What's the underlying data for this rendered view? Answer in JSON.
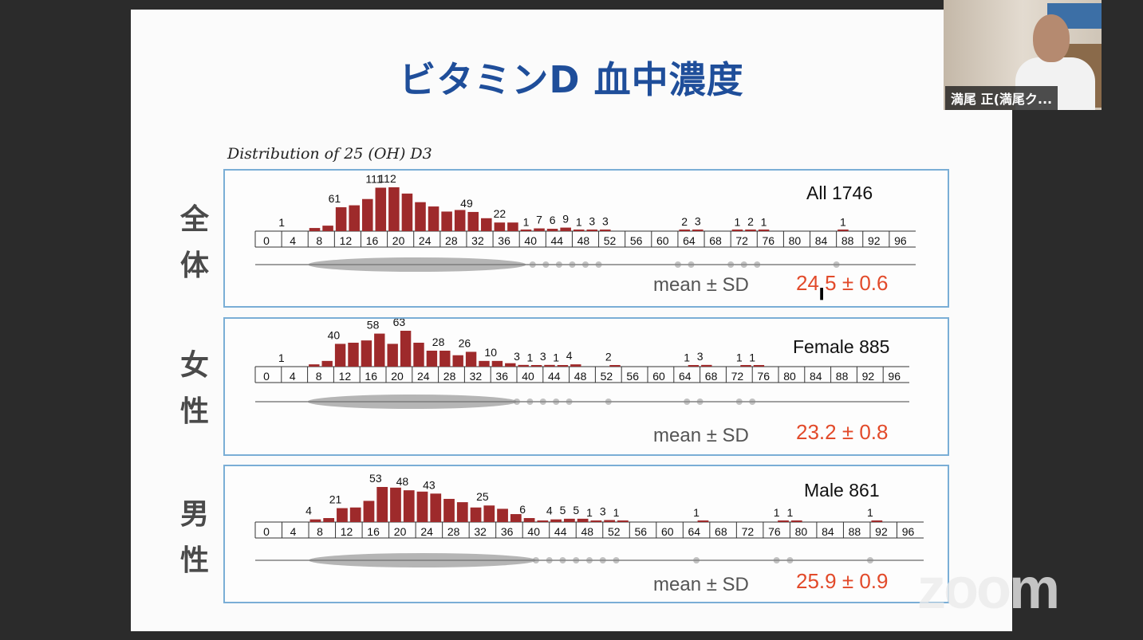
{
  "slide": {
    "title": "ビタミンD 血中濃度",
    "subtitle": "Distribution of 25 (OH) D3",
    "mean_label": "mean ± SD"
  },
  "axis_ticks": [
    "0",
    "4",
    "8",
    "12",
    "16",
    "20",
    "24",
    "28",
    "32",
    "36",
    "40",
    "44",
    "48",
    "52",
    "56",
    "60",
    "64",
    "68",
    "72",
    "76",
    "80",
    "84",
    "88",
    "92",
    "96"
  ],
  "panels": [
    {
      "group_label": [
        "全",
        "体"
      ],
      "title": "All  1746",
      "mean_value": "24.5 ± 0.6",
      "labels": [
        "1",
        "61",
        "111",
        "112",
        "49",
        "22",
        "1",
        "7",
        "6",
        "9",
        "1",
        "3",
        "3",
        "2",
        "3",
        "1",
        "2",
        "1",
        "1"
      ]
    },
    {
      "group_label": [
        "女",
        "性"
      ],
      "title": "Female 885",
      "mean_value": "23.2 ± 0.8",
      "labels": [
        "1",
        "40",
        "58",
        "63",
        "28",
        "26",
        "10",
        "3",
        "1",
        "3",
        "1",
        "4",
        "2",
        "1",
        "3",
        "1",
        "1"
      ]
    },
    {
      "group_label": [
        "男",
        "性"
      ],
      "title": "Male 861",
      "mean_value": "25.9 ± 0.9",
      "labels": [
        "4",
        "21",
        "53",
        "48",
        "43",
        "25",
        "6",
        "4",
        "5",
        "5",
        "1",
        "3",
        "1",
        "1",
        "1",
        "1",
        "1"
      ]
    }
  ],
  "webcam": {
    "name": "満尾 正(満尾ク..."
  },
  "watermark": "zoom",
  "colors": {
    "bar": "#9e2a2b",
    "title": "#1f4e9a",
    "border": "#7aaed6",
    "mean": "#e24a2a"
  },
  "chart_data": [
    {
      "type": "bar",
      "title": "All  1746",
      "xlabel": "",
      "ylabel": "",
      "x_ticks": [
        0,
        4,
        8,
        12,
        16,
        20,
        24,
        28,
        32,
        36,
        40,
        44,
        48,
        52,
        56,
        60,
        64,
        68,
        72,
        76,
        80,
        84,
        88,
        92,
        96
      ],
      "labeled_points": [
        {
          "x": 5,
          "label": "1"
        },
        {
          "x": 13,
          "label": "61"
        },
        {
          "x": 19,
          "label": "111"
        },
        {
          "x": 21,
          "label": "112"
        },
        {
          "x": 33,
          "label": "49"
        },
        {
          "x": 38,
          "label": "22"
        },
        {
          "x": 42,
          "label": "1"
        },
        {
          "x": 44,
          "label": "7"
        },
        {
          "x": 46,
          "label": "6"
        },
        {
          "x": 48,
          "label": "9"
        },
        {
          "x": 50,
          "label": "1"
        },
        {
          "x": 52,
          "label": "3"
        },
        {
          "x": 54,
          "label": "3"
        },
        {
          "x": 66,
          "label": "2"
        },
        {
          "x": 68,
          "label": "3"
        },
        {
          "x": 74,
          "label": "1"
        },
        {
          "x": 76,
          "label": "2"
        },
        {
          "x": 78,
          "label": "1"
        },
        {
          "x": 90,
          "label": "1"
        }
      ],
      "bars": [
        {
          "x": 9,
          "value": 8
        },
        {
          "x": 11,
          "value": 14
        },
        {
          "x": 13,
          "value": 61
        },
        {
          "x": 15,
          "value": 66
        },
        {
          "x": 17,
          "value": 82
        },
        {
          "x": 19,
          "value": 111
        },
        {
          "x": 21,
          "value": 112
        },
        {
          "x": 23,
          "value": 96
        },
        {
          "x": 25,
          "value": 74
        },
        {
          "x": 27,
          "value": 63
        },
        {
          "x": 29,
          "value": 50
        },
        {
          "x": 31,
          "value": 54
        },
        {
          "x": 33,
          "value": 49
        },
        {
          "x": 35,
          "value": 33
        },
        {
          "x": 37,
          "value": 22
        },
        {
          "x": 39,
          "value": 22
        },
        {
          "x": 41,
          "value": 1
        },
        {
          "x": 43,
          "value": 7
        },
        {
          "x": 45,
          "value": 6
        },
        {
          "x": 47,
          "value": 9
        },
        {
          "x": 49,
          "value": 1
        },
        {
          "x": 51,
          "value": 3
        },
        {
          "x": 53,
          "value": 3
        },
        {
          "x": 65,
          "value": 2
        },
        {
          "x": 67,
          "value": 3
        },
        {
          "x": 73,
          "value": 1
        },
        {
          "x": 75,
          "value": 2
        },
        {
          "x": 77,
          "value": 1
        },
        {
          "x": 89,
          "value": 1
        }
      ],
      "mean_sd": "24.5 ± 0.6"
    },
    {
      "type": "bar",
      "title": "Female 885",
      "xlabel": "",
      "ylabel": "",
      "x_ticks": [
        0,
        4,
        8,
        12,
        16,
        20,
        24,
        28,
        32,
        36,
        40,
        44,
        48,
        52,
        56,
        60,
        64,
        68,
        72,
        76,
        80,
        84,
        88,
        92,
        96
      ],
      "labeled_points": [
        {
          "x": 5,
          "label": "1"
        },
        {
          "x": 13,
          "label": "40"
        },
        {
          "x": 19,
          "label": "58"
        },
        {
          "x": 23,
          "label": "63"
        },
        {
          "x": 29,
          "label": "28"
        },
        {
          "x": 33,
          "label": "26"
        },
        {
          "x": 37,
          "label": "10"
        },
        {
          "x": 41,
          "label": "3"
        },
        {
          "x": 43,
          "label": "1"
        },
        {
          "x": 45,
          "label": "3"
        },
        {
          "x": 47,
          "label": "1"
        },
        {
          "x": 49,
          "label": "4"
        },
        {
          "x": 55,
          "label": "2"
        },
        {
          "x": 67,
          "label": "1"
        },
        {
          "x": 69,
          "label": "3"
        },
        {
          "x": 75,
          "label": "1"
        },
        {
          "x": 77,
          "label": "1"
        }
      ],
      "bars": [
        {
          "x": 9,
          "value": 4
        },
        {
          "x": 11,
          "value": 10
        },
        {
          "x": 13,
          "value": 40
        },
        {
          "x": 15,
          "value": 42
        },
        {
          "x": 17,
          "value": 46
        },
        {
          "x": 19,
          "value": 58
        },
        {
          "x": 21,
          "value": 40
        },
        {
          "x": 23,
          "value": 63
        },
        {
          "x": 25,
          "value": 42
        },
        {
          "x": 27,
          "value": 28
        },
        {
          "x": 29,
          "value": 28
        },
        {
          "x": 31,
          "value": 20
        },
        {
          "x": 33,
          "value": 26
        },
        {
          "x": 35,
          "value": 10
        },
        {
          "x": 37,
          "value": 10
        },
        {
          "x": 39,
          "value": 6
        },
        {
          "x": 41,
          "value": 3
        },
        {
          "x": 43,
          "value": 1
        },
        {
          "x": 45,
          "value": 3
        },
        {
          "x": 47,
          "value": 1
        },
        {
          "x": 49,
          "value": 4
        },
        {
          "x": 55,
          "value": 2
        },
        {
          "x": 67,
          "value": 1
        },
        {
          "x": 69,
          "value": 3
        },
        {
          "x": 75,
          "value": 1
        },
        {
          "x": 77,
          "value": 1
        }
      ],
      "mean_sd": "23.2 ± 0.8"
    },
    {
      "type": "bar",
      "title": "Male 861",
      "xlabel": "",
      "ylabel": "",
      "x_ticks": [
        0,
        4,
        8,
        12,
        16,
        20,
        24,
        28,
        32,
        36,
        40,
        44,
        48,
        52,
        56,
        60,
        64,
        68,
        72,
        76,
        80,
        84,
        88,
        92,
        96
      ],
      "labeled_points": [
        {
          "x": 9,
          "label": "4"
        },
        {
          "x": 13,
          "label": "21"
        },
        {
          "x": 19,
          "label": "53"
        },
        {
          "x": 23,
          "label": "48"
        },
        {
          "x": 27,
          "label": "43"
        },
        {
          "x": 35,
          "label": "25"
        },
        {
          "x": 41,
          "label": "6"
        },
        {
          "x": 45,
          "label": "4"
        },
        {
          "x": 47,
          "label": "5"
        },
        {
          "x": 49,
          "label": "5"
        },
        {
          "x": 51,
          "label": "1"
        },
        {
          "x": 53,
          "label": "3"
        },
        {
          "x": 55,
          "label": "1"
        },
        {
          "x": 67,
          "label": "1"
        },
        {
          "x": 79,
          "label": "1"
        },
        {
          "x": 81,
          "label": "1"
        },
        {
          "x": 93,
          "label": "1"
        }
      ],
      "bars": [
        {
          "x": 9,
          "value": 4
        },
        {
          "x": 11,
          "value": 6
        },
        {
          "x": 13,
          "value": 21
        },
        {
          "x": 15,
          "value": 22
        },
        {
          "x": 17,
          "value": 32
        },
        {
          "x": 19,
          "value": 53
        },
        {
          "x": 21,
          "value": 52
        },
        {
          "x": 23,
          "value": 48
        },
        {
          "x": 25,
          "value": 46
        },
        {
          "x": 27,
          "value": 43
        },
        {
          "x": 29,
          "value": 35
        },
        {
          "x": 31,
          "value": 30
        },
        {
          "x": 33,
          "value": 22
        },
        {
          "x": 35,
          "value": 25
        },
        {
          "x": 37,
          "value": 20
        },
        {
          "x": 39,
          "value": 12
        },
        {
          "x": 41,
          "value": 6
        },
        {
          "x": 43,
          "value": 1
        },
        {
          "x": 45,
          "value": 4
        },
        {
          "x": 47,
          "value": 5
        },
        {
          "x": 49,
          "value": 5
        },
        {
          "x": 51,
          "value": 1
        },
        {
          "x": 53,
          "value": 3
        },
        {
          "x": 55,
          "value": 1
        },
        {
          "x": 67,
          "value": 1
        },
        {
          "x": 79,
          "value": 1
        },
        {
          "x": 81,
          "value": 1
        },
        {
          "x": 93,
          "value": 1
        }
      ],
      "mean_sd": "25.9 ± 0.9"
    }
  ]
}
